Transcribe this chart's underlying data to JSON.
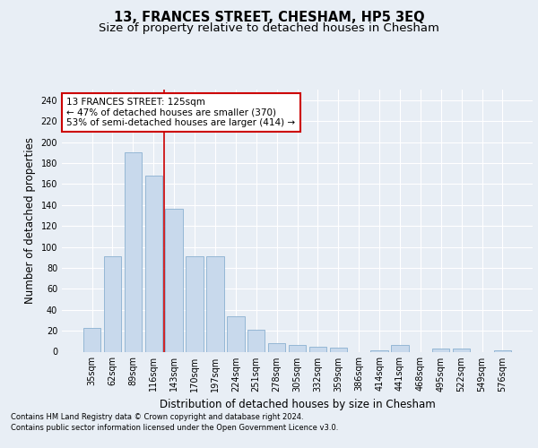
{
  "title": "13, FRANCES STREET, CHESHAM, HP5 3EQ",
  "subtitle": "Size of property relative to detached houses in Chesham",
  "xlabel": "Distribution of detached houses by size in Chesham",
  "ylabel": "Number of detached properties",
  "categories": [
    "35sqm",
    "62sqm",
    "89sqm",
    "116sqm",
    "143sqm",
    "170sqm",
    "197sqm",
    "224sqm",
    "251sqm",
    "278sqm",
    "305sqm",
    "332sqm",
    "359sqm",
    "386sqm",
    "414sqm",
    "441sqm",
    "468sqm",
    "495sqm",
    "522sqm",
    "549sqm",
    "576sqm"
  ],
  "values": [
    23,
    91,
    190,
    168,
    136,
    91,
    91,
    34,
    21,
    8,
    6,
    5,
    4,
    0,
    1,
    6,
    0,
    3,
    3,
    0,
    1
  ],
  "bar_color": "#c8d9ec",
  "bar_edge_color": "#8ab0d0",
  "annotation_text": "13 FRANCES STREET: 125sqm\n← 47% of detached houses are smaller (370)\n53% of semi-detached houses are larger (414) →",
  "annotation_box_color": "#ffffff",
  "annotation_box_edge_color": "#cc0000",
  "footer_line1": "Contains HM Land Registry data © Crown copyright and database right 2024.",
  "footer_line2": "Contains public sector information licensed under the Open Government Licence v3.0.",
  "ylim": [
    0,
    250
  ],
  "yticks": [
    0,
    20,
    40,
    60,
    80,
    100,
    120,
    140,
    160,
    180,
    200,
    220,
    240
  ],
  "bg_color": "#e8eef5",
  "plot_bg_color": "#e8eef5",
  "grid_color": "#ffffff",
  "title_fontsize": 10.5,
  "subtitle_fontsize": 9.5,
  "tick_fontsize": 7,
  "ylabel_fontsize": 8.5,
  "xlabel_fontsize": 8.5,
  "annotation_fontsize": 7.5,
  "footer_fontsize": 6
}
